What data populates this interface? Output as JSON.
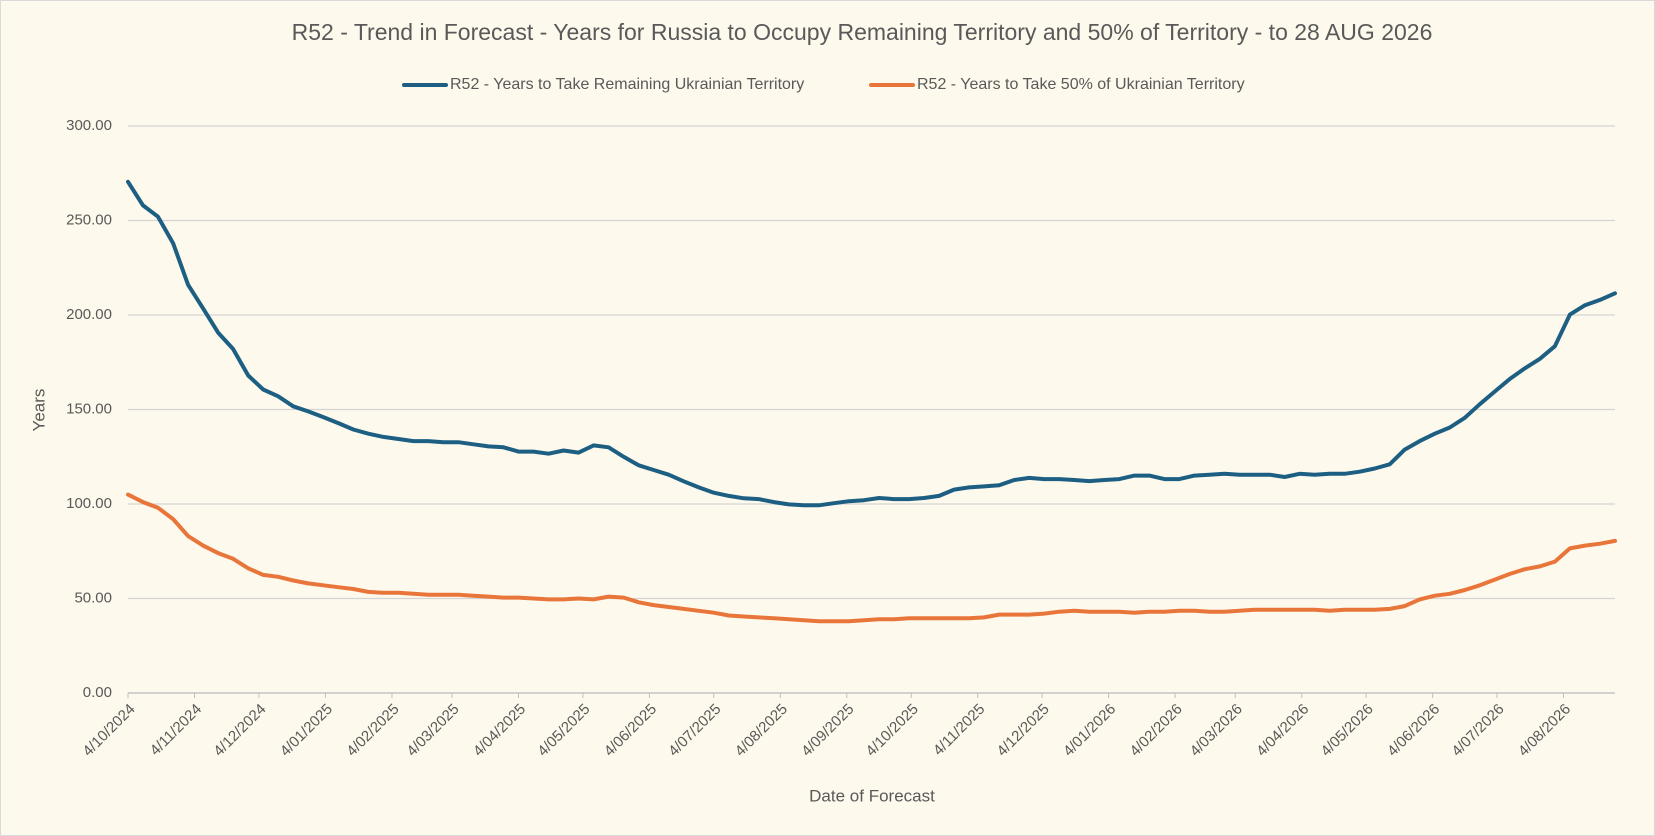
{
  "chart_data": {
    "type": "line",
    "title": "R52 - Trend in Forecast - Years for Russia to Occupy Remaining Territory and 50% of Territory - to 28 AUG 2026",
    "x_label": "Date of Forecast",
    "y_label": "Years",
    "x": [
      "2024-10-04",
      "2024-10-11",
      "2024-10-18",
      "2024-10-25",
      "2024-11-01",
      "2024-11-08",
      "2024-11-15",
      "2024-11-22",
      "2024-11-29",
      "2024-12-06",
      "2024-12-13",
      "2024-12-20",
      "2024-12-27",
      "2025-01-03",
      "2025-01-10",
      "2025-01-17",
      "2025-01-24",
      "2025-01-31",
      "2025-02-07",
      "2025-02-14",
      "2025-02-21",
      "2025-02-28",
      "2025-03-07",
      "2025-03-14",
      "2025-03-21",
      "2025-03-28",
      "2025-04-04",
      "2025-04-11",
      "2025-04-18",
      "2025-04-25",
      "2025-05-02",
      "2025-05-09",
      "2025-05-16",
      "2025-05-23",
      "2025-05-30",
      "2025-06-06",
      "2025-06-13",
      "2025-06-20",
      "2025-06-27",
      "2025-07-04",
      "2025-07-11",
      "2025-07-18",
      "2025-07-25",
      "2025-08-01",
      "2025-08-08",
      "2025-08-15",
      "2025-08-22",
      "2025-08-29",
      "2025-09-05",
      "2025-09-12",
      "2025-09-19",
      "2025-09-26",
      "2025-10-03",
      "2025-10-10",
      "2025-10-17",
      "2025-10-24",
      "2025-10-31",
      "2025-11-07",
      "2025-11-14",
      "2025-11-21",
      "2025-11-28",
      "2025-12-05",
      "2025-12-12",
      "2025-12-19",
      "2025-12-26",
      "2026-01-02",
      "2026-01-09",
      "2026-01-16",
      "2026-01-23",
      "2026-01-30",
      "2026-02-06",
      "2026-02-13",
      "2026-02-20",
      "2026-02-27",
      "2026-03-06",
      "2026-03-13",
      "2026-03-20",
      "2026-03-27",
      "2026-04-03",
      "2026-04-10",
      "2026-04-17",
      "2026-04-24",
      "2026-05-01",
      "2026-05-08",
      "2026-05-15",
      "2026-05-22",
      "2026-05-29",
      "2026-06-05",
      "2026-06-12",
      "2026-06-19",
      "2026-06-26",
      "2026-07-03",
      "2026-07-10",
      "2026-07-17",
      "2026-07-24",
      "2026-07-31",
      "2026-08-07",
      "2026-08-14",
      "2026-08-21",
      "2026-08-28"
    ],
    "series": [
      {
        "name": "R52 - Years to Take Remaining Ukrainian Territory",
        "color": "#1d5f82",
        "values": [
          270.5,
          258,
          252,
          238,
          216,
          203.5,
          190.7,
          182,
          168,
          160.6,
          157,
          151.7,
          149,
          146,
          142.8,
          139.4,
          137.2,
          135.5,
          134.4,
          133.3,
          133.3,
          132.7,
          132.7,
          131.6,
          130.5,
          130,
          127.7,
          127.7,
          126.6,
          128.3,
          127.2,
          131,
          130,
          125,
          120.5,
          118,
          115.5,
          112,
          108.8,
          106,
          104.3,
          103,
          102.6,
          101,
          99.8,
          99.3,
          99.3,
          100.4,
          101.5,
          102,
          103.2,
          102.6,
          102.6,
          103.2,
          104.3,
          107.6,
          108.8,
          109.3,
          109.9,
          112.7,
          113.8,
          113.2,
          113.2,
          112.7,
          112.1,
          112.7,
          113.2,
          115,
          115,
          113.2,
          113.2,
          115,
          115.5,
          116,
          115.5,
          115.5,
          115.5,
          114.3,
          116,
          115.5,
          116,
          116,
          117.1,
          118.8,
          121,
          128.8,
          133.3,
          137.2,
          140.5,
          145.6,
          152.8,
          159.5,
          166.2,
          171.8,
          176.8,
          183.5,
          200.2,
          205.2,
          208,
          211.5
        ]
      },
      {
        "name": "R52 - Years to Take  50% of Ukrainian Territory",
        "color": "#e8763a",
        "values": [
          105,
          101,
          98,
          92,
          83,
          78,
          74,
          71,
          66,
          62.5,
          61.5,
          59.5,
          58,
          57,
          56,
          55,
          53.5,
          53,
          53,
          52.5,
          52,
          52,
          52,
          51.5,
          51,
          50.5,
          50.5,
          50,
          49.5,
          49.5,
          50,
          49.5,
          51,
          50.5,
          48,
          46.5,
          45.5,
          44.5,
          43.5,
          42.5,
          41,
          40.5,
          40,
          39.5,
          39,
          38.5,
          38,
          38,
          38,
          38.5,
          39,
          39,
          39.5,
          39.5,
          39.5,
          39.5,
          39.5,
          40,
          41.5,
          41.5,
          41.5,
          42,
          43,
          43.5,
          43,
          43,
          43,
          42.5,
          43,
          43,
          43.5,
          43.5,
          43,
          43,
          43.5,
          44,
          44,
          44,
          44,
          44,
          43.5,
          44,
          44,
          44,
          44.5,
          46,
          49.5,
          51.5,
          52.5,
          54.5,
          57,
          60,
          63,
          65.5,
          67,
          69.5,
          76.5,
          78,
          79,
          80.5
        ]
      }
    ],
    "xlim": [
      "2024-10-04",
      "2026-08-28"
    ],
    "xticks": [
      {
        "value": "2024-10-04",
        "label": "4/10/2024"
      },
      {
        "value": "2024-11-04",
        "label": "4/11/2024"
      },
      {
        "value": "2024-12-04",
        "label": "4/12/2024"
      },
      {
        "value": "2025-01-04",
        "label": "4/01/2025"
      },
      {
        "value": "2025-02-04",
        "label": "4/02/2025"
      },
      {
        "value": "2025-03-04",
        "label": "4/03/2025"
      },
      {
        "value": "2025-04-04",
        "label": "4/04/2025"
      },
      {
        "value": "2025-05-04",
        "label": "4/05/2025"
      },
      {
        "value": "2025-06-04",
        "label": "4/06/2025"
      },
      {
        "value": "2025-07-04",
        "label": "4/07/2025"
      },
      {
        "value": "2025-08-04",
        "label": "4/08/2025"
      },
      {
        "value": "2025-09-04",
        "label": "4/09/2025"
      },
      {
        "value": "2025-10-04",
        "label": "4/10/2025"
      },
      {
        "value": "2025-11-04",
        "label": "4/11/2025"
      },
      {
        "value": "2025-12-04",
        "label": "4/12/2025"
      },
      {
        "value": "2026-01-04",
        "label": "4/01/2026"
      },
      {
        "value": "2026-02-04",
        "label": "4/02/2026"
      },
      {
        "value": "2026-03-04",
        "label": "4/03/2026"
      },
      {
        "value": "2026-04-04",
        "label": "4/04/2026"
      },
      {
        "value": "2026-05-04",
        "label": "4/05/2026"
      },
      {
        "value": "2026-06-04",
        "label": "4/06/2026"
      },
      {
        "value": "2026-07-04",
        "label": "4/07/2026"
      },
      {
        "value": "2026-08-04",
        "label": "4/08/2026"
      }
    ],
    "ylim": [
      0,
      300
    ],
    "yticks": [
      {
        "value": 0,
        "label": "0.00"
      },
      {
        "value": 50,
        "label": "50.00"
      },
      {
        "value": 100,
        "label": "100.00"
      },
      {
        "value": 150,
        "label": "150.00"
      },
      {
        "value": 200,
        "label": "200.00"
      },
      {
        "value": 250,
        "label": "250.00"
      },
      {
        "value": 300,
        "label": "300.00"
      }
    ],
    "grid": true,
    "legend": "top"
  }
}
